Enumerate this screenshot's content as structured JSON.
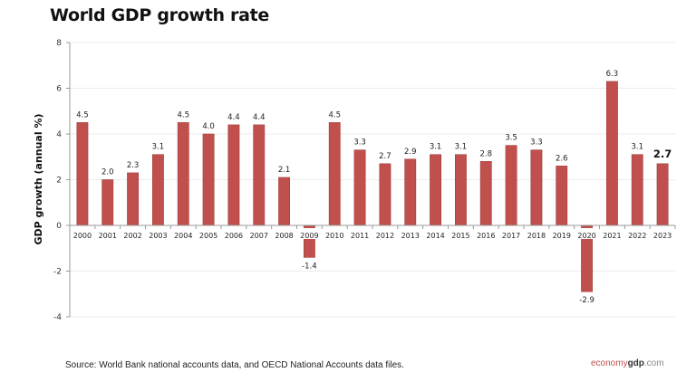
{
  "chart_data": {
    "type": "bar",
    "title": "World GDP growth rate",
    "xlabel": "",
    "ylabel": "GDP growth (annual %)",
    "ylim": [
      -4,
      8
    ],
    "yticks": [
      -4,
      -2,
      0,
      2,
      4,
      6,
      8
    ],
    "ytick_labels": [
      "-4",
      "-2",
      "0",
      "2",
      "4",
      "6",
      "8"
    ],
    "grid": true,
    "legend": "none",
    "bar_color": "#c0504d",
    "categories": [
      "2000",
      "2001",
      "2002",
      "2003",
      "2004",
      "2005",
      "2006",
      "2007",
      "2008",
      "2009",
      "2010",
      "2011",
      "2012",
      "2013",
      "2014",
      "2015",
      "2016",
      "2017",
      "2018",
      "2019",
      "2020",
      "2021",
      "2022",
      "2023"
    ],
    "values": [
      4.5,
      2.0,
      2.3,
      3.1,
      4.5,
      4.0,
      4.4,
      4.4,
      2.1,
      -1.4,
      4.5,
      3.3,
      2.7,
      2.9,
      3.1,
      3.1,
      2.8,
      3.5,
      3.3,
      2.6,
      -2.9,
      6.3,
      3.1,
      2.7
    ],
    "data_labels": [
      "4.5",
      "2.0",
      "2.3",
      "3.1",
      "4.5",
      "4.0",
      "4.4",
      "4.4",
      "2.1",
      "-1.4",
      "4.5",
      "3.3",
      "2.7",
      "2.9",
      "3.1",
      "3.1",
      "2.8",
      "3.5",
      "3.3",
      "2.6",
      "-2.9",
      "6.3",
      "3.1",
      "2.7"
    ],
    "highlighted_label": "2023"
  },
  "footer": {
    "source": "Source:  World Bank national accounts data, and OECD National Accounts data files.",
    "logo_part1": "economy",
    "logo_part2": "gdp",
    "logo_part3": ".com"
  }
}
